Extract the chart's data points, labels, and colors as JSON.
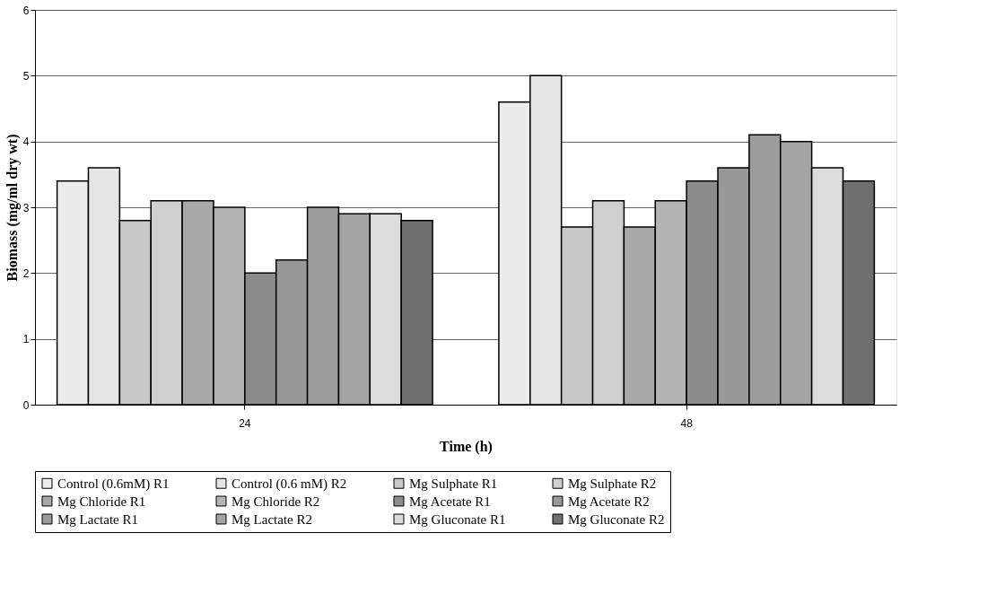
{
  "chart_data": {
    "type": "bar",
    "xlabel": "Time (h)",
    "ylabel": "Biomass (mg/ml dry wt)",
    "categories": [
      "24",
      "48"
    ],
    "series": [
      {
        "name": "Control (0.6mM) R1",
        "color": "#ececec",
        "values": [
          3.4,
          4.6
        ]
      },
      {
        "name": "Control (0.6 mM) R2",
        "color": "#e4e4e4",
        "values": [
          3.6,
          5.0
        ]
      },
      {
        "name": "Mg Sulphate R1",
        "color": "#c8c8c8",
        "values": [
          2.8,
          2.7
        ]
      },
      {
        "name": "Mg Sulphate R2",
        "color": "#d0d0d0",
        "values": [
          3.1,
          3.1
        ]
      },
      {
        "name": "Mg Chloride R1",
        "color": "#a8a8a8",
        "values": [
          3.1,
          2.7
        ]
      },
      {
        "name": "Mg Chloride R2",
        "color": "#b4b4b4",
        "values": [
          3.0,
          3.1
        ]
      },
      {
        "name": "Mg Acetate R1",
        "color": "#8c8c8c",
        "values": [
          2.0,
          3.4
        ]
      },
      {
        "name": "Mg Acetate R2",
        "color": "#989898",
        "values": [
          2.2,
          3.6
        ]
      },
      {
        "name": "Mg Lactate R1",
        "color": "#9c9c9c",
        "values": [
          3.0,
          4.1
        ]
      },
      {
        "name": "Mg Lactate R2",
        "color": "#a4a4a4",
        "values": [
          2.9,
          4.0
        ]
      },
      {
        "name": "Mg Gluconate R1",
        "color": "#dcdcdc",
        "values": [
          2.9,
          3.6
        ]
      },
      {
        "name": "Mg Gluconate R2",
        "color": "#707070",
        "values": [
          2.8,
          3.4
        ]
      }
    ],
    "ylim": [
      0,
      6
    ],
    "yticks": [
      0,
      1,
      2,
      3,
      4,
      5,
      6
    ],
    "grid": "y",
    "legend": "bottom"
  }
}
